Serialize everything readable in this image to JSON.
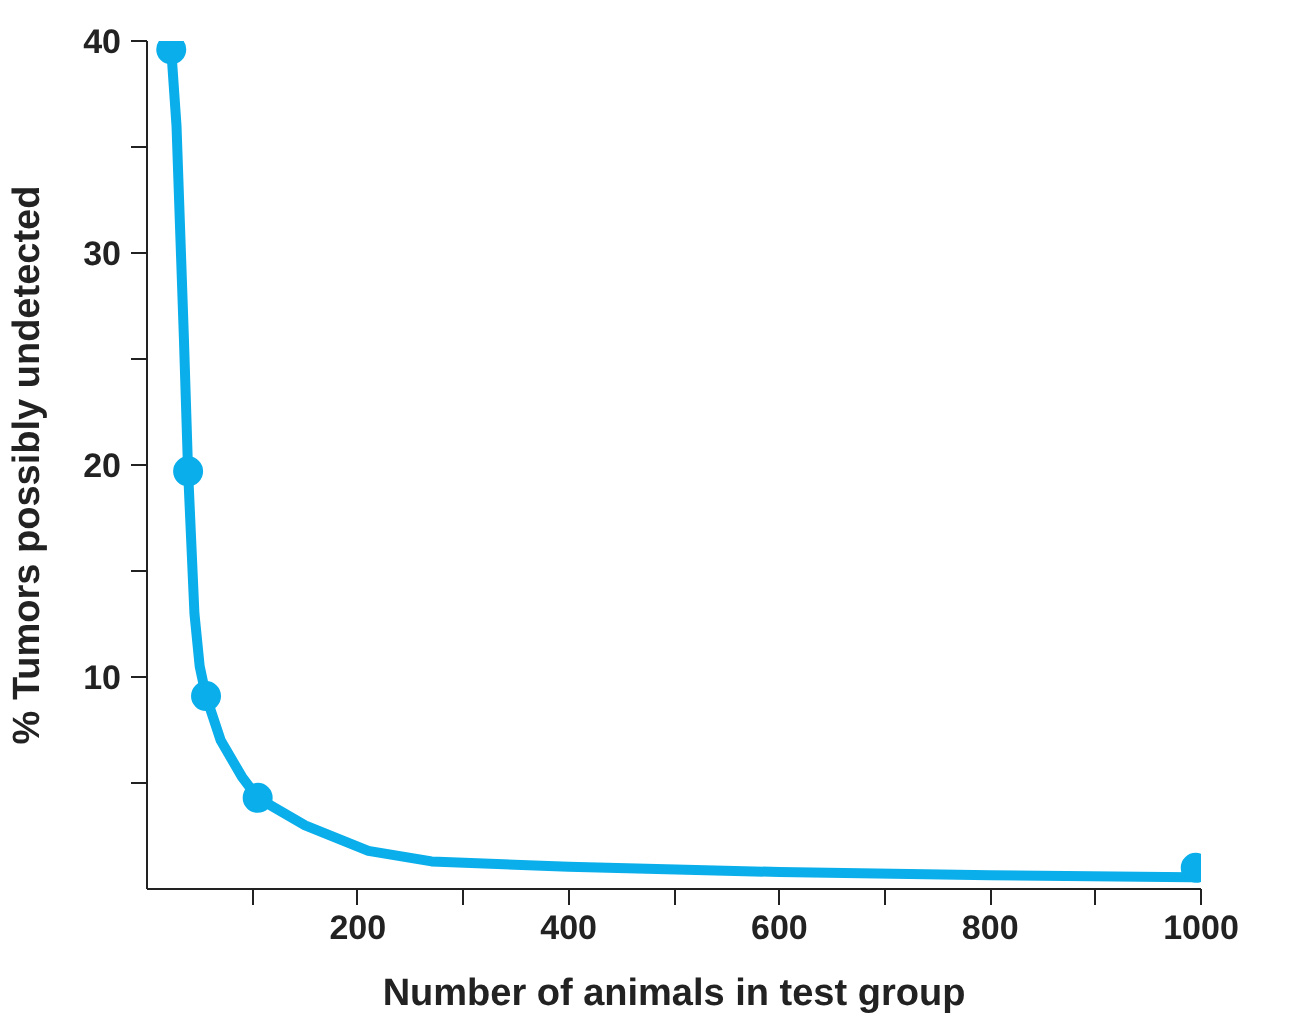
{
  "chart_data": {
    "type": "line",
    "xlabel": "Number of animals in test group",
    "ylabel": "% Tumors possibly undetected",
    "xlim": [
      0,
      1000
    ],
    "ylim": [
      0,
      40
    ],
    "xticks": [
      {
        "value": 100,
        "label": null
      },
      200,
      {
        "value": 300,
        "label": null
      },
      400,
      {
        "value": 500,
        "label": null
      },
      600,
      {
        "value": 700,
        "label": null
      },
      800,
      {
        "value": 900,
        "label": null
      },
      1000
    ],
    "yticks": [
      {
        "value": 5,
        "label": null
      },
      10,
      {
        "value": 15,
        "label": null
      },
      20,
      {
        "value": 25,
        "label": null
      },
      30,
      {
        "value": 35,
        "label": null
      },
      40
    ],
    "grid": false,
    "series": [
      {
        "color": "#0aaeea",
        "marker": "none",
        "x": [
          23,
          28,
          35,
          39,
          45,
          50,
          56,
          70,
          90,
          105,
          150,
          210,
          270,
          400,
          600,
          800,
          990
        ],
        "values": [
          39.6,
          36,
          26,
          19.7,
          13,
          10.5,
          9.1,
          7,
          5.3,
          4.3,
          3,
          1.8,
          1.3,
          1.05,
          0.8,
          0.65,
          0.55
        ]
      },
      {
        "type": "scatter",
        "color": "#0aaeea",
        "marker": "circle",
        "x": [
          23,
          39,
          56,
          105,
          995
        ],
        "values": [
          39.6,
          19.7,
          9.1,
          4.3,
          1.0
        ]
      }
    ]
  }
}
